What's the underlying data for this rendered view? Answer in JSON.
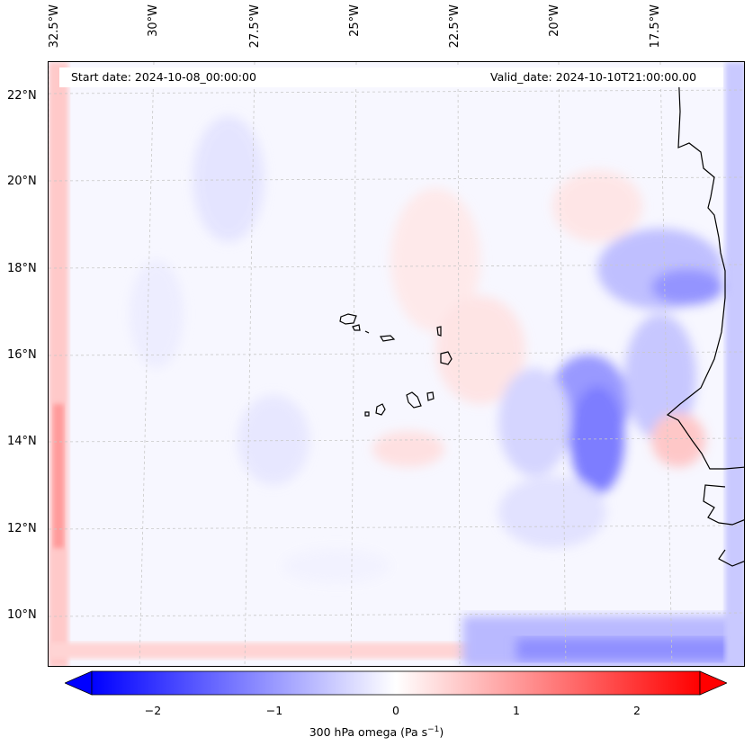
{
  "header": {
    "start_date": "Start date: 2024-10-08_00:00:00",
    "valid_date": "Valid_date: 2024-10-10T21:00:00.00"
  },
  "axes": {
    "lon_labels": [
      "32.5°W",
      "30°W",
      "27.5°W",
      "25°W",
      "22.5°W",
      "20°W",
      "17.5°W"
    ],
    "lat_labels": [
      "22°N",
      "20°N",
      "18°N",
      "16°N",
      "14°N",
      "12°N",
      "10°N"
    ]
  },
  "colorbar": {
    "ticks": [
      "−2",
      "−1",
      "0",
      "1",
      "2"
    ],
    "label_text": "300 hPa omega (Pa s",
    "label_exp": "−1",
    "label_close": ")",
    "min": -2.5,
    "max": 2.5,
    "colors": {
      "negative": "#0000ff",
      "zero": "#ffffff",
      "positive": "#ff0000"
    }
  }
}
